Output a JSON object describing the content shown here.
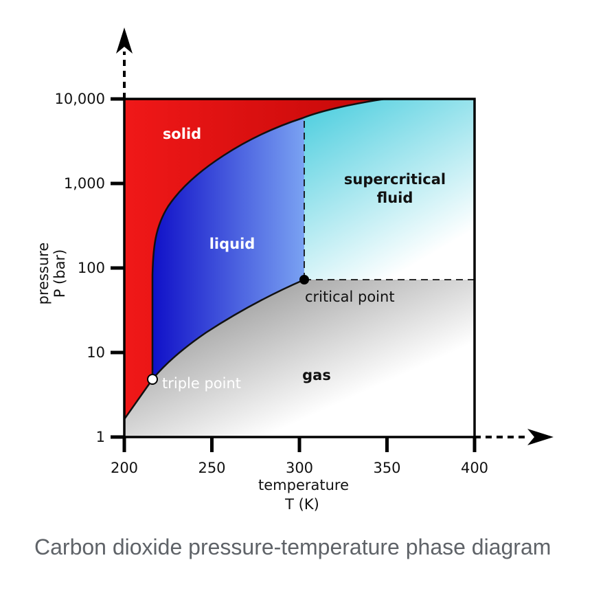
{
  "diagram": {
    "y_axis": {
      "title_line1": "pressure",
      "title_line2": "P (bar)",
      "ticks": [
        {
          "value": 1,
          "label": "1"
        },
        {
          "value": 10,
          "label": "10"
        },
        {
          "value": 100,
          "label": "100"
        },
        {
          "value": 1000,
          "label": "1,000"
        },
        {
          "value": 10000,
          "label": "10,000"
        }
      ],
      "scale": "log",
      "range": [
        1,
        10000
      ]
    },
    "x_axis": {
      "title_line1": "temperature",
      "title_line2": "T (K)",
      "ticks": [
        {
          "value": 200,
          "label": "200"
        },
        {
          "value": 250,
          "label": "250"
        },
        {
          "value": 300,
          "label": "300"
        },
        {
          "value": 350,
          "label": "350"
        },
        {
          "value": 400,
          "label": "400"
        }
      ],
      "range": [
        200,
        400
      ]
    },
    "regions": {
      "solid": "solid",
      "liquid": "liquid",
      "supercritical_line1": "supercritical",
      "supercritical_line2": "fluid",
      "gas": "gas"
    },
    "points": {
      "triple": {
        "label": "triple point",
        "T": 216.6,
        "P": 5.1
      },
      "critical": {
        "label": "critical point",
        "T": 304.2,
        "P": 73.8
      }
    },
    "colors": {
      "solid": "#ee1111",
      "liquid": "#1a1acc",
      "supercritical": "#55d0e0",
      "gas": "#888888"
    }
  },
  "caption": {
    "text": "Carbon dioxide pressure-temperature phase diagram"
  }
}
